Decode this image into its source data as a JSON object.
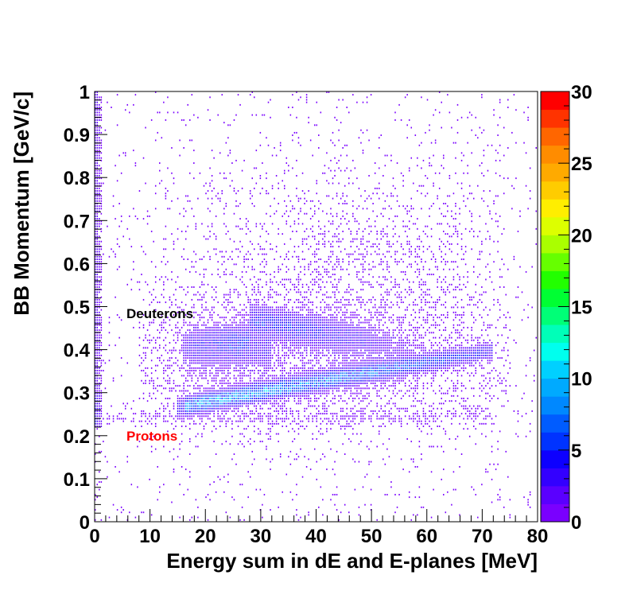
{
  "chart_data": {
    "type": "heatmap",
    "title": "",
    "xlabel": "Energy sum in dE and E-planes [MeV]",
    "ylabel": "BB Momentum [GeV/c]",
    "xlim": [
      0,
      80
    ],
    "ylim": [
      0,
      1
    ],
    "x_ticks": [
      "0",
      "10",
      "20",
      "30",
      "40",
      "50",
      "60",
      "70",
      "80"
    ],
    "y_ticks": [
      "0",
      "0.1",
      "0.2",
      "0.3",
      "0.4",
      "0.5",
      "0.6",
      "0.7",
      "0.8",
      "0.9",
      "1"
    ],
    "z_range": [
      0,
      30
    ],
    "z_ticks": [
      "0",
      "5",
      "10",
      "15",
      "20",
      "25",
      "30"
    ],
    "palette": [
      "#7a00ff",
      "#5a00ff",
      "#3300ff",
      "#0d00ff",
      "#0033ff",
      "#005cff",
      "#0088ff",
      "#00aaff",
      "#00d0ff",
      "#00ffee",
      "#00ffb8",
      "#00ff77",
      "#00ff33",
      "#22ff00",
      "#66ff00",
      "#aaff00",
      "#ddff00",
      "#ffee00",
      "#ffcc00",
      "#ffaa00",
      "#ff8c00",
      "#ff6600",
      "#ff3300",
      "#ff0000"
    ],
    "grid": false,
    "annotations": [
      {
        "text": "Deuterons",
        "x": 5.5,
        "y": 0.48,
        "color": "#000000"
      },
      {
        "text": "Protons",
        "x": 5.5,
        "y": 0.2,
        "color": "#ff0000"
      }
    ],
    "bands": [
      {
        "region": "low-energy vertical band",
        "x_range": [
          0,
          1.5
        ],
        "y_range": [
          0.2,
          1.0
        ],
        "z_peak": 8
      },
      {
        "region": "proton band",
        "x_range": [
          16,
          70
        ],
        "y_range": [
          0.27,
          0.39
        ],
        "z_peak": 13
      },
      {
        "region": "deuteron band",
        "x_range": [
          17,
          60
        ],
        "y_range": [
          0.37,
          0.49
        ],
        "z_peak": 6
      }
    ]
  }
}
